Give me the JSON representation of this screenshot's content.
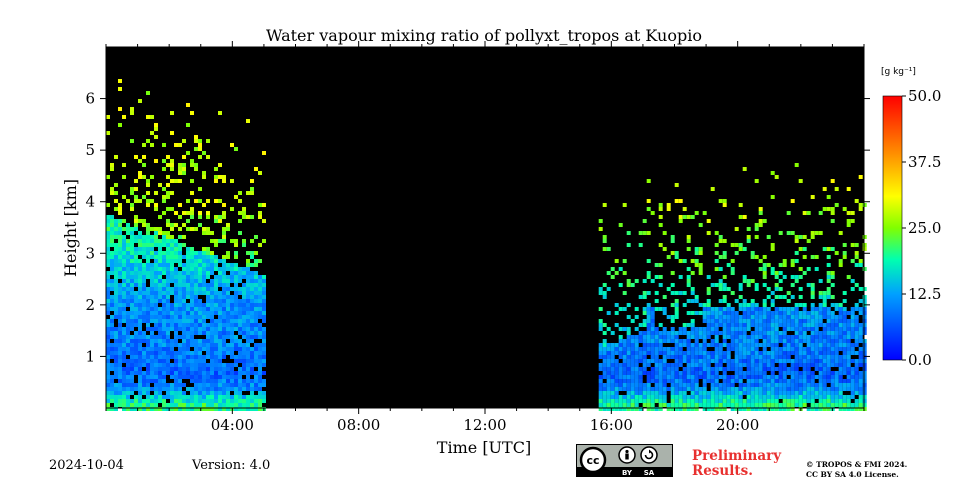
{
  "chart_data": {
    "type": "heatmap",
    "title": "Water vapour mixing ratio of pollyxt_tropos at Kuopio",
    "xlabel": "Time [UTC]",
    "ylabel": "Height [km]",
    "xlim_hours": [
      0,
      24
    ],
    "ylim_km": [
      0,
      7
    ],
    "xticks_major": [
      "04:00",
      "08:00",
      "12:00",
      "16:00",
      "20:00"
    ],
    "xticks_major_hours": [
      4,
      8,
      12,
      16,
      20
    ],
    "yticks": [
      1,
      2,
      3,
      4,
      5,
      6
    ],
    "colorbar": {
      "unit_label": "[g kg⁻¹]",
      "ticks": [
        "0.0",
        "12.5",
        "25.0",
        "37.5",
        "50.0"
      ],
      "range": [
        0,
        50
      ],
      "colormap": "jet"
    },
    "background": "#000000",
    "data_segments": [
      {
        "start_hour": 0.0,
        "end_hour": 5.0,
        "description": "water vapour measurements"
      },
      {
        "start_hour": 15.6,
        "end_hour": 24.0,
        "description": "water vapour measurements"
      }
    ],
    "profile_levels": [
      {
        "height_km": 0.1,
        "value": 20
      },
      {
        "height_km": 0.4,
        "value": 11
      },
      {
        "height_km": 0.7,
        "value": 8
      },
      {
        "height_km": 1.2,
        "value": 10
      },
      {
        "height_km": 2.0,
        "value": 11
      },
      {
        "height_km": 3.0,
        "value": 17
      },
      {
        "height_km": 4.0,
        "value": 22
      }
    ]
  },
  "footer": {
    "date": "2024-10-04",
    "version": "Version: 4.0",
    "preliminary": [
      "Preliminary",
      "Results."
    ],
    "copyright": [
      "© TROPOS & FMI 2024.",
      "CC BY SA 4.0 License."
    ],
    "license_badge": {
      "by": "BY",
      "sa": "SA"
    }
  }
}
